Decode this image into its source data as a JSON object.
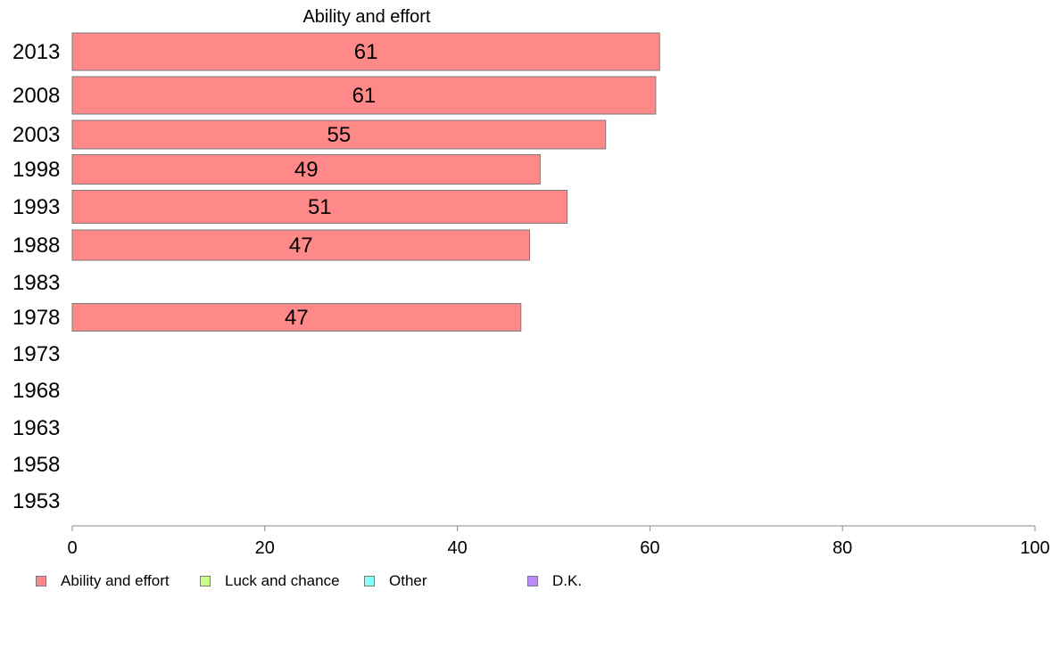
{
  "chart_data": {
    "type": "bar",
    "orientation": "horizontal",
    "title": "Ability and effort",
    "categories": [
      "2013",
      "2008",
      "2003",
      "1998",
      "1993",
      "1988",
      "1983",
      "1978",
      "1973",
      "1968",
      "1963",
      "1958",
      "1953"
    ],
    "series": [
      {
        "name": "Ability and effort",
        "color": "#ff8888",
        "values": [
          61,
          60.6,
          55.4,
          48.6,
          51.4,
          47.5,
          null,
          46.6,
          null,
          null,
          null,
          null,
          null
        ],
        "labels": [
          "61",
          "61",
          "55",
          "49",
          "51",
          "47",
          "",
          "47",
          "",
          "",
          "",
          "",
          ""
        ]
      }
    ],
    "xlim": [
      0,
      100
    ],
    "xticks": [
      "0",
      "20",
      "40",
      "60",
      "80",
      "100"
    ],
    "grid": false,
    "legend": {
      "position": "bottom",
      "items": [
        {
          "label": "Ability and effort",
          "color": "#ff8888"
        },
        {
          "label": "Luck and chance",
          "color": "#ccff88"
        },
        {
          "label": "Other",
          "color": "#88ffff"
        },
        {
          "label": "D.K.",
          "color": "#bb88ff"
        }
      ]
    }
  }
}
